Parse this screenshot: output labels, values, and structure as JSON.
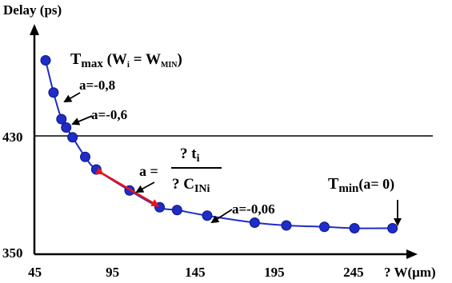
{
  "chart_data": {
    "type": "line",
    "ylabel": "Delay (ps)",
    "xlabel": "? W(µm)",
    "xlim": [
      45,
      270
    ],
    "ylim": [
      350,
      490
    ],
    "x_ticks": [
      "45",
      "95",
      "145",
      "195",
      "245"
    ],
    "y_ticks": [
      "430",
      "350"
    ],
    "reference_line_y": 430,
    "grid": false,
    "series": [
      {
        "x": [
          50,
          55,
          60,
          63,
          67,
          75,
          82,
          103,
          122,
          133,
          152,
          182,
          202,
          226,
          245,
          269
        ],
        "y": [
          484,
          461,
          442,
          436,
          429,
          415,
          406,
          391,
          379,
          377,
          373,
          368,
          366,
          365,
          364,
          364
        ],
        "color": "#1f2cc8"
      }
    ],
    "tangent_segment": {
      "x": [
        86,
        121
      ],
      "y": [
        403,
        380
      ],
      "color": "#e8141c"
    },
    "annotations": {
      "tmax_main": "T",
      "tmax_sub": "max",
      "tmax_paren_open": " (W",
      "tmax_sub_i": "i",
      "tmax_eq": " = W",
      "tmax_sub_min": "MIN",
      "tmax_paren_close": ")",
      "a08": "a=-0,8",
      "a06": "a=-0,6",
      "a006": "a=-0,06",
      "formula_a": "a =",
      "formula_num_q": "? t",
      "formula_num_sub": "i",
      "formula_den_q": "? C",
      "formula_den_sub": "INi",
      "tmin_main": "T",
      "tmin_sub": "min",
      "tmin_rest": "(a= 0)"
    }
  }
}
